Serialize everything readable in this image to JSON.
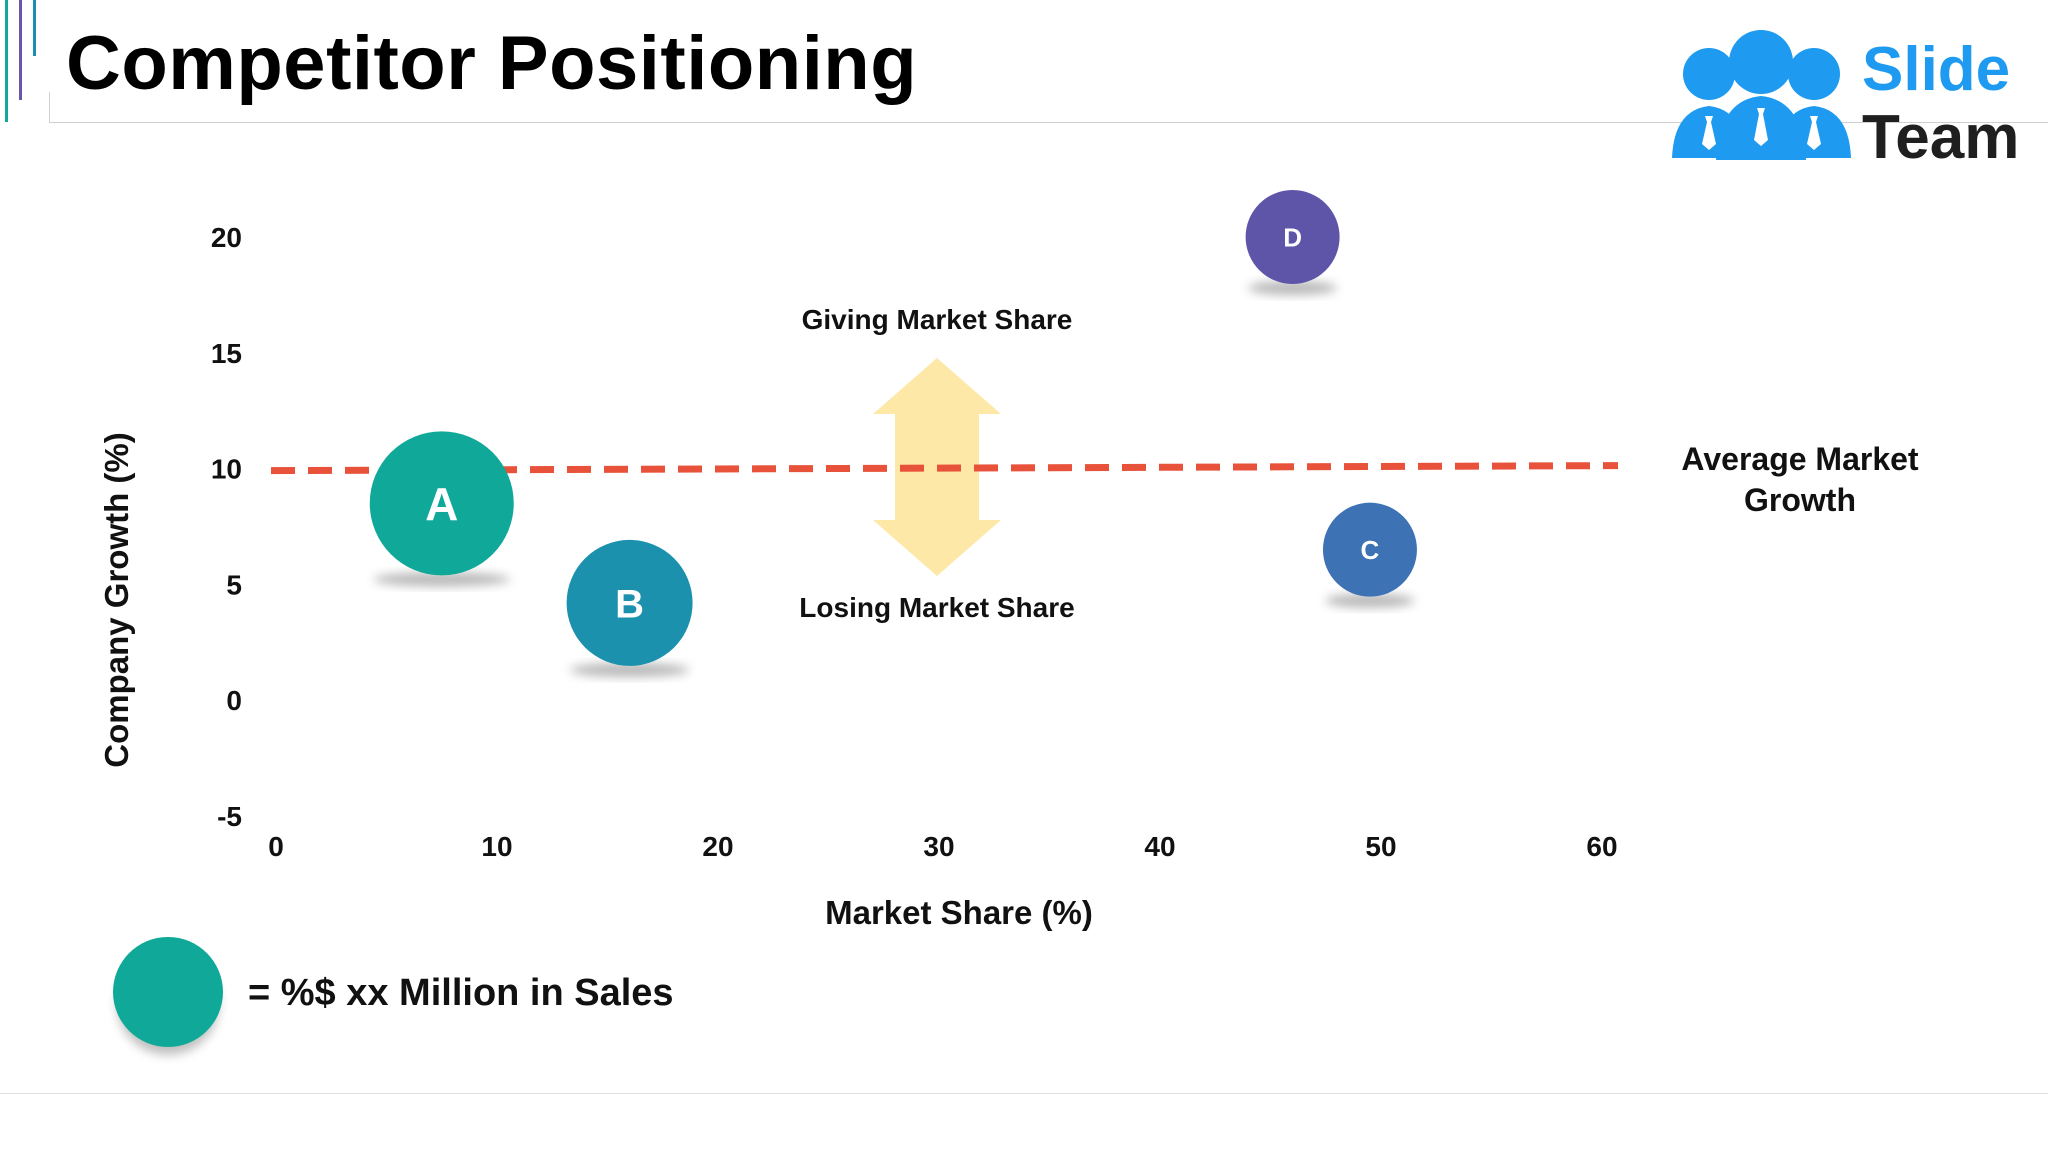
{
  "slide": {
    "title": "Competitor Positioning"
  },
  "logo": {
    "word1": "Slide",
    "word2": "Team",
    "color_primary": "#1e9bf0",
    "color_text": "#1f1f1f"
  },
  "legend": {
    "text": "= %$ xx Million in Sales",
    "bubble_color": "#0fa899"
  },
  "chart_data": {
    "type": "scatter",
    "xlabel": "Market Share (%)",
    "ylabel": "Company Growth (%)",
    "xlim": [
      0,
      60
    ],
    "ylim": [
      -5,
      20
    ],
    "x_ticks": [
      "0",
      "10",
      "20",
      "30",
      "40",
      "50",
      "60"
    ],
    "y_ticks": [
      "20",
      "15",
      "10",
      "5",
      "0",
      "-5"
    ],
    "grid": false,
    "series": [
      {
        "label": "A",
        "x": 7.5,
        "y": 8.5,
        "size": "large",
        "color": "#0fa899"
      },
      {
        "label": "B",
        "x": 16,
        "y": 4.2,
        "size": "medium",
        "color": "#1b91ad"
      },
      {
        "label": "C",
        "x": 49.5,
        "y": 6.5,
        "size": "small",
        "color": "#3d72b4"
      },
      {
        "label": "D",
        "x": 46,
        "y": 20,
        "size": "small",
        "color": "#5e55a8"
      }
    ],
    "reference_line": {
      "label": "Average Market Growth",
      "y": 10,
      "color": "#e8523a",
      "style": "dashed"
    },
    "arrow_annotation": {
      "x": 30,
      "top_label": "Giving Market Share",
      "bottom_label": "Losing Market Share",
      "color": "#fde8a8"
    }
  }
}
